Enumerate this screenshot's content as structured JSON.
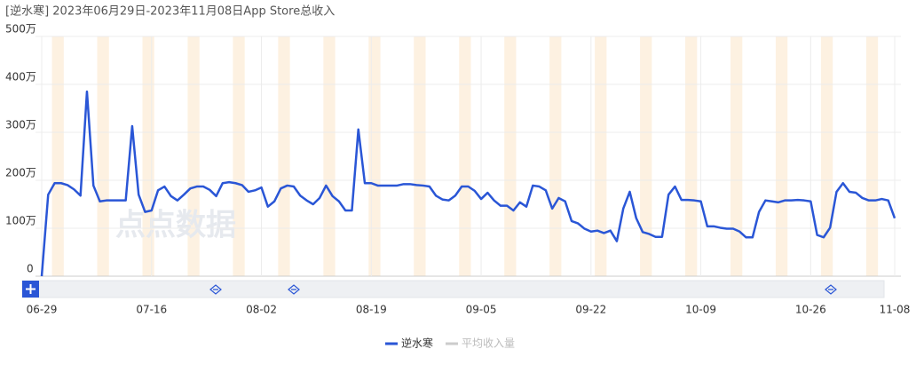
{
  "chart_data": {
    "type": "line",
    "title": "[逆水寒]  2023年06月29日-2023年11月08日App Store总收入",
    "watermark": "点点数据",
    "categories": [
      "06-29",
      null,
      null,
      null,
      null,
      null,
      null,
      null,
      null,
      null,
      null,
      null,
      null,
      null,
      null,
      null,
      null,
      "07-16",
      null,
      null,
      null,
      null,
      null,
      null,
      null,
      null,
      null,
      null,
      null,
      null,
      null,
      null,
      null,
      null,
      "08-02",
      null,
      null,
      null,
      null,
      null,
      null,
      null,
      null,
      null,
      null,
      null,
      null,
      null,
      null,
      null,
      null,
      "08-19",
      null,
      null,
      null,
      null,
      null,
      null,
      null,
      null,
      null,
      null,
      null,
      null,
      null,
      null,
      null,
      null,
      "09-05",
      null,
      null,
      null,
      null,
      null,
      null,
      null,
      null,
      null,
      null,
      null,
      null,
      null,
      null,
      null,
      null,
      "09-22",
      null,
      null,
      null,
      null,
      null,
      null,
      null,
      null,
      null,
      null,
      null,
      null,
      null,
      null,
      null,
      null,
      "10-09",
      null,
      null,
      null,
      null,
      null,
      null,
      null,
      null,
      null,
      null,
      null,
      null,
      null,
      null,
      null,
      null,
      "10-26",
      null,
      null,
      null,
      null,
      null,
      null,
      null,
      null,
      null,
      null,
      null,
      null,
      "11-08"
    ],
    "series": [
      {
        "name": "逆水寒",
        "color": "#2a56d6",
        "values": [
          0,
          170,
          194,
          194,
          190,
          181,
          168,
          385,
          189,
          156,
          158,
          158,
          158,
          158,
          313,
          170,
          134,
          137,
          179,
          187,
          167,
          158,
          170,
          183,
          187,
          187,
          180,
          167,
          194,
          196,
          194,
          190,
          176,
          179,
          185,
          145,
          156,
          183,
          189,
          187,
          168,
          158,
          150,
          163,
          189,
          167,
          156,
          137,
          137,
          306,
          194,
          194,
          189,
          189,
          189,
          189,
          192,
          192,
          190,
          189,
          187,
          168,
          160,
          158,
          168,
          187,
          187,
          178,
          161,
          174,
          158,
          147,
          147,
          137,
          154,
          145,
          189,
          187,
          179,
          141,
          163,
          156,
          115,
          110,
          99,
          93,
          95,
          90,
          95,
          73,
          141,
          176,
          121,
          92,
          88,
          82,
          82,
          170,
          187,
          159,
          159,
          158,
          156,
          104,
          104,
          101,
          99,
          99,
          93,
          81,
          81,
          134,
          158,
          156,
          154,
          158,
          158,
          159,
          158,
          156,
          86,
          81,
          101,
          176,
          194,
          176,
          174,
          163,
          158,
          158,
          161,
          158,
          121
        ]
      }
    ],
    "hidden_series": [
      {
        "name": "平均收入量",
        "color": "#cccccc"
      }
    ],
    "ylim": [
      0,
      500
    ],
    "yticks": [
      0,
      {
        "value": 100,
        "label": "100万"
      },
      {
        "value": 200,
        "label": "200万"
      },
      {
        "value": 300,
        "label": "300万"
      },
      {
        "value": 400,
        "label": "400万"
      },
      {
        "value": 500,
        "label": "500万"
      }
    ],
    "grid": true
  }
}
